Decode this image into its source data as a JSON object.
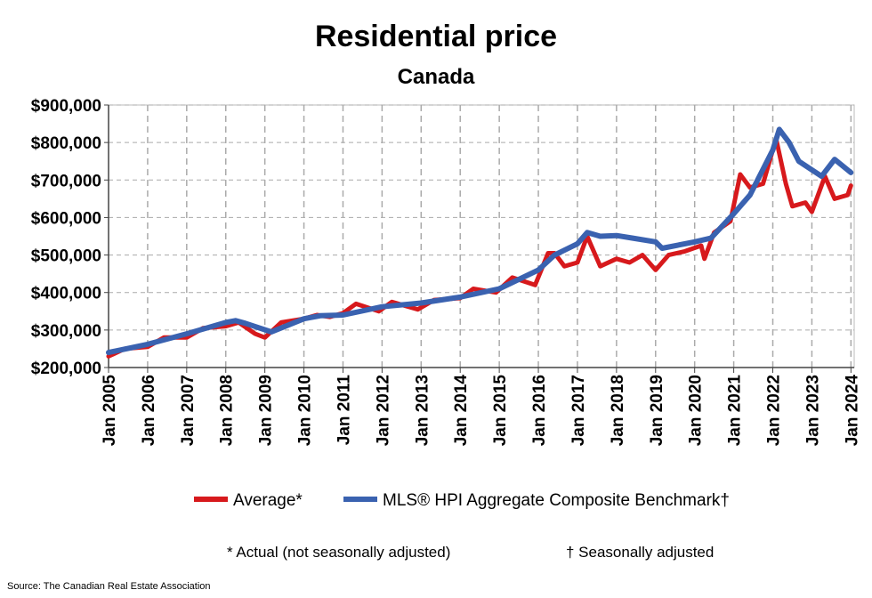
{
  "chart_data": {
    "type": "line",
    "title": "Residential price",
    "subtitle": "Canada",
    "xlabel": "",
    "ylabel": "",
    "ylim": [
      200000,
      900000
    ],
    "xlim": [
      "2005-01",
      "2024-02"
    ],
    "grid": true,
    "legend_position": "bottom",
    "y_ticks": [
      "$200,000",
      "$300,000",
      "$400,000",
      "$500,000",
      "$600,000",
      "$700,000",
      "$800,000",
      "$900,000"
    ],
    "y_tick_values": [
      200000,
      300000,
      400000,
      500000,
      600000,
      700000,
      800000,
      900000
    ],
    "x_ticks": [
      "Jan 2005",
      "Jan 2006",
      "Jan 2007",
      "Jan 2008",
      "Jan 2009",
      "Jan 2010",
      "Jan 2011",
      "Jan 2012",
      "Jan 2013",
      "Jan 2014",
      "Jan 2015",
      "Jan 2016",
      "Jan 2017",
      "Jan 2018",
      "Jan 2019",
      "Jan 2020",
      "Jan 2021",
      "Jan 2022",
      "Jan 2023",
      "Jan 2024"
    ],
    "series": [
      {
        "name": "Average*",
        "color": "#d7191c",
        "points": [
          [
            "2005-01",
            230000
          ],
          [
            "2005-06",
            250000
          ],
          [
            "2006-01",
            255000
          ],
          [
            "2006-06",
            280000
          ],
          [
            "2007-01",
            280000
          ],
          [
            "2007-06",
            305000
          ],
          [
            "2008-01",
            310000
          ],
          [
            "2008-05",
            320000
          ],
          [
            "2008-10",
            290000
          ],
          [
            "2009-01",
            280000
          ],
          [
            "2009-06",
            320000
          ],
          [
            "2010-01",
            330000
          ],
          [
            "2010-05",
            340000
          ],
          [
            "2010-09",
            335000
          ],
          [
            "2011-01",
            345000
          ],
          [
            "2011-05",
            370000
          ],
          [
            "2011-12",
            350000
          ],
          [
            "2012-04",
            375000
          ],
          [
            "2012-12",
            355000
          ],
          [
            "2013-05",
            380000
          ],
          [
            "2014-01",
            385000
          ],
          [
            "2014-05",
            410000
          ],
          [
            "2014-12",
            400000
          ],
          [
            "2015-05",
            440000
          ],
          [
            "2015-12",
            420000
          ],
          [
            "2016-04",
            505000
          ],
          [
            "2016-06",
            505000
          ],
          [
            "2016-09",
            470000
          ],
          [
            "2017-01",
            480000
          ],
          [
            "2017-04",
            550000
          ],
          [
            "2017-08",
            470000
          ],
          [
            "2018-01",
            490000
          ],
          [
            "2018-05",
            480000
          ],
          [
            "2018-09",
            500000
          ],
          [
            "2019-01",
            460000
          ],
          [
            "2019-05",
            500000
          ],
          [
            "2019-10",
            510000
          ],
          [
            "2020-03",
            525000
          ],
          [
            "2020-04",
            490000
          ],
          [
            "2020-07",
            560000
          ],
          [
            "2020-12",
            590000
          ],
          [
            "2021-03",
            715000
          ],
          [
            "2021-06",
            680000
          ],
          [
            "2021-10",
            690000
          ],
          [
            "2022-02",
            810000
          ],
          [
            "2022-05",
            690000
          ],
          [
            "2022-07",
            630000
          ],
          [
            "2022-11",
            640000
          ],
          [
            "2023-01",
            615000
          ],
          [
            "2023-05",
            710000
          ],
          [
            "2023-08",
            650000
          ],
          [
            "2023-12",
            660000
          ],
          [
            "2024-01",
            685000
          ]
        ]
      },
      {
        "name": "MLS® HPI Aggregate Composite Benchmark†",
        "color": "#3a62b0",
        "points": [
          [
            "2005-01",
            240000
          ],
          [
            "2006-01",
            262000
          ],
          [
            "2007-01",
            290000
          ],
          [
            "2008-01",
            320000
          ],
          [
            "2008-04",
            325000
          ],
          [
            "2008-07",
            318000
          ],
          [
            "2009-03",
            295000
          ],
          [
            "2010-01",
            330000
          ],
          [
            "2010-06",
            338000
          ],
          [
            "2011-01",
            340000
          ],
          [
            "2012-01",
            362000
          ],
          [
            "2013-01",
            372000
          ],
          [
            "2014-01",
            388000
          ],
          [
            "2015-01",
            410000
          ],
          [
            "2016-01",
            460000
          ],
          [
            "2016-06",
            500000
          ],
          [
            "2017-01",
            530000
          ],
          [
            "2017-04",
            560000
          ],
          [
            "2017-08",
            550000
          ],
          [
            "2018-01",
            552000
          ],
          [
            "2018-06",
            545000
          ],
          [
            "2019-01",
            535000
          ],
          [
            "2019-03",
            518000
          ],
          [
            "2020-01",
            535000
          ],
          [
            "2020-06",
            545000
          ],
          [
            "2021-01",
            610000
          ],
          [
            "2021-06",
            660000
          ],
          [
            "2022-01",
            780000
          ],
          [
            "2022-03",
            835000
          ],
          [
            "2022-06",
            800000
          ],
          [
            "2022-09",
            750000
          ],
          [
            "2023-04",
            710000
          ],
          [
            "2023-08",
            755000
          ],
          [
            "2024-01",
            720000
          ]
        ]
      }
    ],
    "footnotes": [
      "* Actual (not seasonally adjusted)",
      "† Seasonally adjusted"
    ],
    "source": "Source: The Canadian Real Estate Association"
  }
}
